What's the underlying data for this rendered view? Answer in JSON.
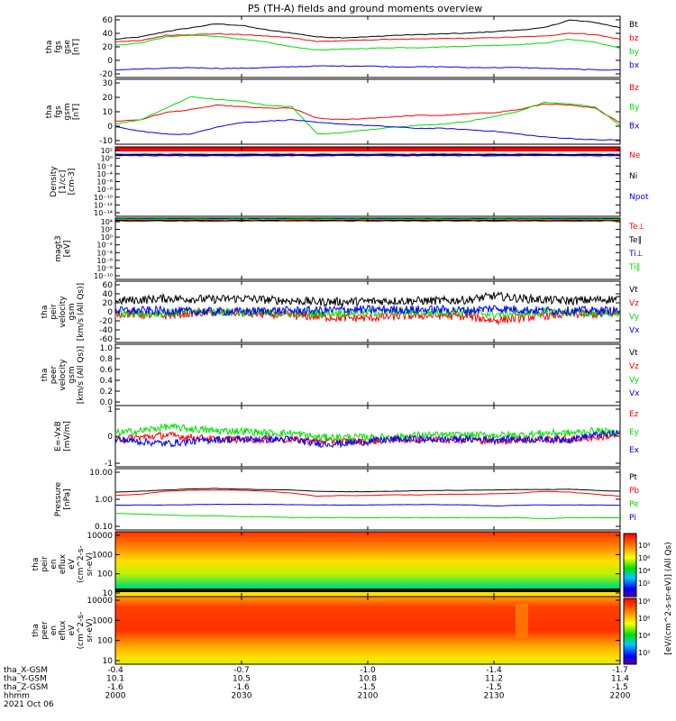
{
  "title": "P5 (TH-A) fields and ground moments overview",
  "colors": {
    "black": "#000000",
    "red": "#ff0000",
    "green": "#00e000",
    "blue": "#0000ff",
    "lightgreen": "#66ff66"
  },
  "chart_data": {
    "type": "line",
    "xaxis": {
      "time_ticks": [
        "2000",
        "2030",
        "2100",
        "2130",
        "2200"
      ],
      "ephemeris_rows": [
        {
          "label": "tha_X-GSM",
          "values": [
            "-0.4",
            "-0.7",
            "-1.0",
            "-1.4",
            "-1.7"
          ]
        },
        {
          "label": "tha_Y-GSM",
          "values": [
            "10.1",
            "10.5",
            "10.8",
            "11.2",
            "11.4"
          ]
        },
        {
          "label": "tha_Z-GSM",
          "values": [
            "-1.6",
            "-1.6",
            "-1.5",
            "-1.5",
            "-1.5"
          ]
        },
        {
          "label": "hhmm",
          "values": [
            "2000",
            "2030",
            "2100",
            "2130",
            "2200"
          ]
        }
      ],
      "date": "2021 Oct 06"
    },
    "panels": [
      {
        "id": "fgs_gse",
        "ylabel": [
          "tha",
          "fgs",
          "gse",
          "[nT]"
        ],
        "yticks": [
          "60",
          "40",
          "20",
          "0",
          "-20"
        ],
        "ylim": [
          -20,
          60
        ],
        "series": [
          {
            "name": "Bt",
            "color": "#000000",
            "values": [
              30,
              33,
              40,
              45,
              50,
              48,
              42,
              38,
              33,
              32,
              33,
              35,
              36,
              37,
              38,
              40,
              42,
              45,
              55,
              52,
              45
            ]
          },
          {
            "name": "bz",
            "color": "#ff0000",
            "values": [
              27,
              28,
              35,
              36,
              37,
              36,
              34,
              32,
              27,
              28,
              29,
              30,
              30,
              31,
              31,
              32,
              33,
              34,
              38,
              36,
              30
            ]
          },
          {
            "name": "by",
            "color": "#00e000",
            "values": [
              22,
              25,
              33,
              35,
              34,
              30,
              26,
              20,
              16,
              17,
              18,
              19,
              19,
              20,
              21,
              22,
              23,
              25,
              30,
              26,
              18
            ]
          },
          {
            "name": "bx",
            "color": "#0000ff",
            "values": [
              -10,
              -9,
              -8,
              -7,
              -8,
              -8,
              -7,
              -6,
              -5,
              -5,
              -5,
              -6,
              -6,
              -6,
              -7,
              -7,
              -7,
              -8,
              -9,
              -10,
              -10
            ]
          }
        ]
      },
      {
        "id": "fgs_gsm",
        "ylabel": [
          "tha",
          "fgs",
          "gsm",
          "[nT]"
        ],
        "yticks": [
          "30",
          "20",
          "10",
          "0",
          "-10"
        ],
        "ylim": [
          -15,
          30
        ],
        "series": [
          {
            "name": "Bz",
            "color": "#ff0000",
            "values": [
              1,
              2,
              7,
              9,
              12,
              11,
              10,
              10,
              3,
              2,
              3,
              4,
              5,
              5,
              6,
              7,
              9,
              13,
              12,
              10,
              0
            ]
          },
          {
            "name": "By",
            "color": "#00e000",
            "values": [
              -1,
              2,
              10,
              18,
              16,
              15,
              12,
              11,
              -8,
              -7,
              -5,
              -3,
              -2,
              -1,
              1,
              4,
              8,
              14,
              13,
              11,
              -2
            ]
          },
          {
            "name": "Bx",
            "color": "#0000ff",
            "values": [
              -3,
              -6,
              -8,
              -8,
              -3,
              0,
              1,
              2,
              0,
              -1,
              -2,
              -3,
              -4,
              -4,
              -5,
              -6,
              -8,
              -10,
              -11,
              -12,
              -12
            ]
          }
        ]
      },
      {
        "id": "density",
        "ylabel": [
          "Density",
          "[1/cc]",
          "[cm-3]"
        ],
        "yticks": [
          "10²",
          "10⁰",
          "10⁻²",
          "10⁻⁴",
          "10⁻⁶",
          "10⁻⁸",
          "10⁻¹⁰",
          "10⁻¹²",
          "10⁻¹⁴"
        ],
        "ylim_log10": [
          -14,
          2
        ],
        "series": [
          {
            "name": "Ne",
            "color": "#ff0000",
            "const_log10": 0.3
          },
          {
            "name": "Ni",
            "color": "#000000",
            "const_log10": 0.2
          },
          {
            "name": "Npot",
            "color": "#0000ff",
            "const_log10": 0.0
          }
        ]
      },
      {
        "id": "temperature",
        "ylabel": [
          "magt3",
          "[eV]"
        ],
        "yticks": [
          "10⁴",
          "10²",
          "10⁰",
          "10⁻²",
          "10⁻⁴",
          "10⁻⁶",
          "10⁻⁸",
          "10⁻¹⁰"
        ],
        "ylim_log10": [
          -11,
          4
        ],
        "series": [
          {
            "name": "Te⊥",
            "color": "#ff0000",
            "const_log10": 3.3
          },
          {
            "name": "Te∥",
            "color": "#000000",
            "const_log10": 3.5
          },
          {
            "name": "Ti⊥",
            "color": "#0000ff",
            "const_log10": 3.8
          },
          {
            "name": "Ti∥",
            "color": "#00e000",
            "const_log10": 3.7
          }
        ]
      },
      {
        "id": "peir_velocity",
        "ylabel": [
          "tha",
          "peir",
          "velocity",
          "gsm",
          "[km/s (All Qs)]"
        ],
        "yticks": [
          "60",
          "40",
          "20",
          "0",
          "-20",
          "-40",
          "-60"
        ],
        "ylim": [
          -65,
          60
        ],
        "series": [
          {
            "name": "Vt",
            "color": "#000000",
            "values": [
              20,
              22,
              25,
              24,
              23,
              25,
              22,
              20,
              18,
              18,
              19,
              20,
              20,
              20,
              22,
              30,
              25,
              22,
              20,
              22,
              24
            ]
          },
          {
            "name": "Vz",
            "color": "#ff0000",
            "values": [
              -5,
              -8,
              -10,
              -5,
              -3,
              -5,
              -8,
              -10,
              -12,
              -15,
              -15,
              -12,
              -10,
              -10,
              -12,
              -20,
              -15,
              -10,
              -8,
              -8,
              -5
            ]
          },
          {
            "name": "Vy",
            "color": "#00e000",
            "values": [
              -3,
              -5,
              -5,
              -3,
              -2,
              -4,
              -5,
              -5,
              -5,
              -4,
              -4,
              -3,
              -3,
              -3,
              -2,
              -8,
              -5,
              -3,
              -3,
              -5,
              -5
            ]
          },
          {
            "name": "Vx",
            "color": "#0000ff",
            "values": [
              0,
              0,
              0,
              -2,
              -2,
              -2,
              0,
              0,
              0,
              2,
              2,
              2,
              2,
              2,
              0,
              5,
              2,
              0,
              0,
              0,
              0
            ]
          }
        ]
      },
      {
        "id": "peer_velocity",
        "ylabel": [
          "tha",
          "peer",
          "velocity",
          "gsm",
          "[km/s (All Qs)]"
        ],
        "yticks": [
          "1.0",
          "0.8",
          "0.6",
          "0.4",
          "0.2",
          "0.0"
        ],
        "ylim": [
          0,
          1
        ],
        "series": [
          {
            "name": "Vt",
            "color": "#000000"
          },
          {
            "name": "Vz",
            "color": "#ff0000"
          },
          {
            "name": "Vy",
            "color": "#00e000"
          },
          {
            "name": "Vx",
            "color": "#0000ff"
          }
        ]
      },
      {
        "id": "efield",
        "ylabel": [
          "E=-VxB",
          "[mV/m]"
        ],
        "yticks": [
          "1",
          "0",
          "-1"
        ],
        "ylim": [
          -1.3,
          1.6
        ],
        "series": [
          {
            "name": "Ez",
            "color": "#ff0000",
            "values": [
              0,
              0.1,
              0.2,
              0.1,
              0,
              0,
              0,
              0,
              -0.1,
              -0.1,
              -0.1,
              0,
              0,
              0,
              0,
              -0.1,
              0,
              0,
              0,
              0.1,
              0.2
            ]
          },
          {
            "name": "Ey",
            "color": "#00e000",
            "values": [
              0.3,
              0.4,
              0.6,
              0.5,
              0.4,
              0.4,
              0.3,
              0.3,
              0.1,
              0.1,
              0.1,
              0.1,
              0.2,
              0.2,
              0.2,
              0.2,
              0.2,
              0.3,
              0.3,
              0.4,
              0.3
            ]
          },
          {
            "name": "Ex",
            "color": "#0000ff",
            "values": [
              0,
              -0.1,
              -0.2,
              -0.1,
              0,
              0,
              0,
              0,
              -0.2,
              -0.2,
              -0.1,
              0,
              0,
              0,
              0,
              0,
              0,
              0,
              0,
              0.2,
              0.3
            ]
          }
        ]
      },
      {
        "id": "pressure",
        "ylabel": [
          "Pressure",
          "[nPa]"
        ],
        "yticks": [
          "10.00",
          "1.00",
          "0.10"
        ],
        "ylim_log10": [
          -1.5,
          1
        ],
        "series": [
          {
            "name": "Pt",
            "color": "#000000",
            "values": [
              1.1,
              1.2,
              1.35,
              1.5,
              1.55,
              1.45,
              1.4,
              1.35,
              1.2,
              1.15,
              1.15,
              1.2,
              1.25,
              1.3,
              1.3,
              1.35,
              1.4,
              1.4,
              1.45,
              1.3,
              1.2
            ]
          },
          {
            "name": "Pb",
            "color": "#ff0000",
            "values": [
              0.8,
              0.9,
              1.2,
              1.3,
              1.35,
              1.3,
              1.2,
              1.0,
              0.75,
              0.8,
              0.8,
              0.85,
              0.85,
              0.9,
              0.9,
              0.95,
              1.0,
              1.2,
              1.1,
              0.9,
              0.75
            ]
          },
          {
            "name": "Pe",
            "color": "#00e000",
            "values": [
              0.15,
              0.14,
              0.13,
              0.12,
              0.12,
              0.11,
              0.11,
              0.1,
              0.1,
              0.1,
              0.1,
              0.1,
              0.1,
              0.1,
              0.1,
              0.1,
              0.1,
              0.09,
              0.1,
              0.1,
              0.1
            ]
          },
          {
            "name": "Pi",
            "color": "#0000ff",
            "values": [
              0.32,
              0.33,
              0.33,
              0.34,
              0.35,
              0.35,
              0.35,
              0.34,
              0.33,
              0.33,
              0.33,
              0.34,
              0.34,
              0.34,
              0.33,
              0.3,
              0.32,
              0.33,
              0.33,
              0.33,
              0.32
            ]
          }
        ]
      },
      {
        "id": "peir_spec",
        "type": "heatmap",
        "ylabel": [
          "tha",
          "peir",
          "en",
          "eflux",
          "eV",
          "(cm^2-s-",
          "sr-eV)"
        ],
        "yticks": [
          "10000",
          "1000",
          "100",
          "10"
        ],
        "ylim_log10": [
          0.8,
          4.3
        ]
      },
      {
        "id": "peer_spec",
        "type": "heatmap",
        "ylabel": [
          "tha",
          "peer",
          "en",
          "eflux",
          "eV",
          "(cm^2-s-",
          "sr-eV)"
        ],
        "yticks": [
          "10000",
          "1000",
          "100",
          "10"
        ],
        "ylim_log10": [
          0.8,
          4.3
        ]
      }
    ],
    "colorbar": {
      "label": "[eV/(cm^2-s-sr-eV)] (All Qs)",
      "ticks_top": [
        "10⁸",
        "10⁶",
        "10⁴",
        "10²"
      ],
      "ticks_bottom": [
        "10⁸",
        "10⁶",
        "10⁴",
        "10²"
      ]
    }
  }
}
